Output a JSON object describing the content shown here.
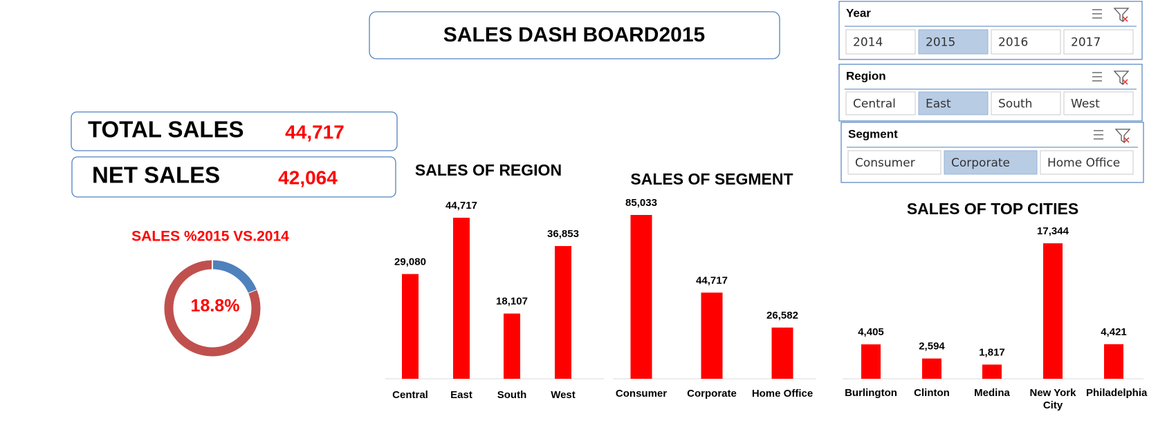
{
  "title": "SALES DASH BOARD2015",
  "kpis": [
    {
      "label": "TOTAL SALES",
      "value": "44,717"
    },
    {
      "label": "NET SALES",
      "value": "42,064"
    }
  ],
  "slicers": [
    {
      "title": "Year",
      "items": [
        {
          "label": "2014",
          "selected": false
        },
        {
          "label": "2015",
          "selected": true
        },
        {
          "label": "2016",
          "selected": false
        },
        {
          "label": "2017",
          "selected": false
        }
      ]
    },
    {
      "title": "Region",
      "items": [
        {
          "label": "Central",
          "selected": false
        },
        {
          "label": "East",
          "selected": true
        },
        {
          "label": "South",
          "selected": false
        },
        {
          "label": "West",
          "selected": false
        }
      ]
    },
    {
      "title": "Segment",
      "items": [
        {
          "label": "Consumer",
          "selected": false
        },
        {
          "label": "Corporate",
          "selected": true
        },
        {
          "label": "Home Office",
          "selected": false
        }
      ]
    }
  ],
  "chart_data": [
    {
      "type": "donut",
      "title": "SALES %2015 VS.2014",
      "values": [
        18.8,
        81.2
      ],
      "colors": [
        "#4f81bd",
        "#c0504d"
      ],
      "center_label": "18.8%"
    },
    {
      "type": "bar",
      "title": "SALES OF REGION",
      "categories": [
        "Central",
        "East",
        "South",
        "West"
      ],
      "values": [
        29080,
        44717,
        18107,
        36853
      ],
      "value_labels": [
        "29,080",
        "44,717",
        "18,107",
        "36,853"
      ],
      "color": "#ff0000"
    },
    {
      "type": "bar",
      "title": "SALES OF SEGMENT",
      "categories": [
        "Consumer",
        "Corporate",
        "Home Office"
      ],
      "values": [
        85033,
        44717,
        26582
      ],
      "value_labels": [
        "85,033",
        "44,717",
        "26,582"
      ],
      "color": "#ff0000"
    },
    {
      "type": "bar",
      "title": "SALES OF TOP CITIES",
      "categories": [
        "Burlington",
        "Clinton",
        "Medina",
        "New York City",
        "Philadelphia"
      ],
      "values": [
        4405,
        2594,
        1817,
        17344,
        4421
      ],
      "value_labels": [
        "4,405",
        "2,594",
        "1,817",
        "17,344",
        "4,421"
      ],
      "color": "#ff0000"
    }
  ]
}
